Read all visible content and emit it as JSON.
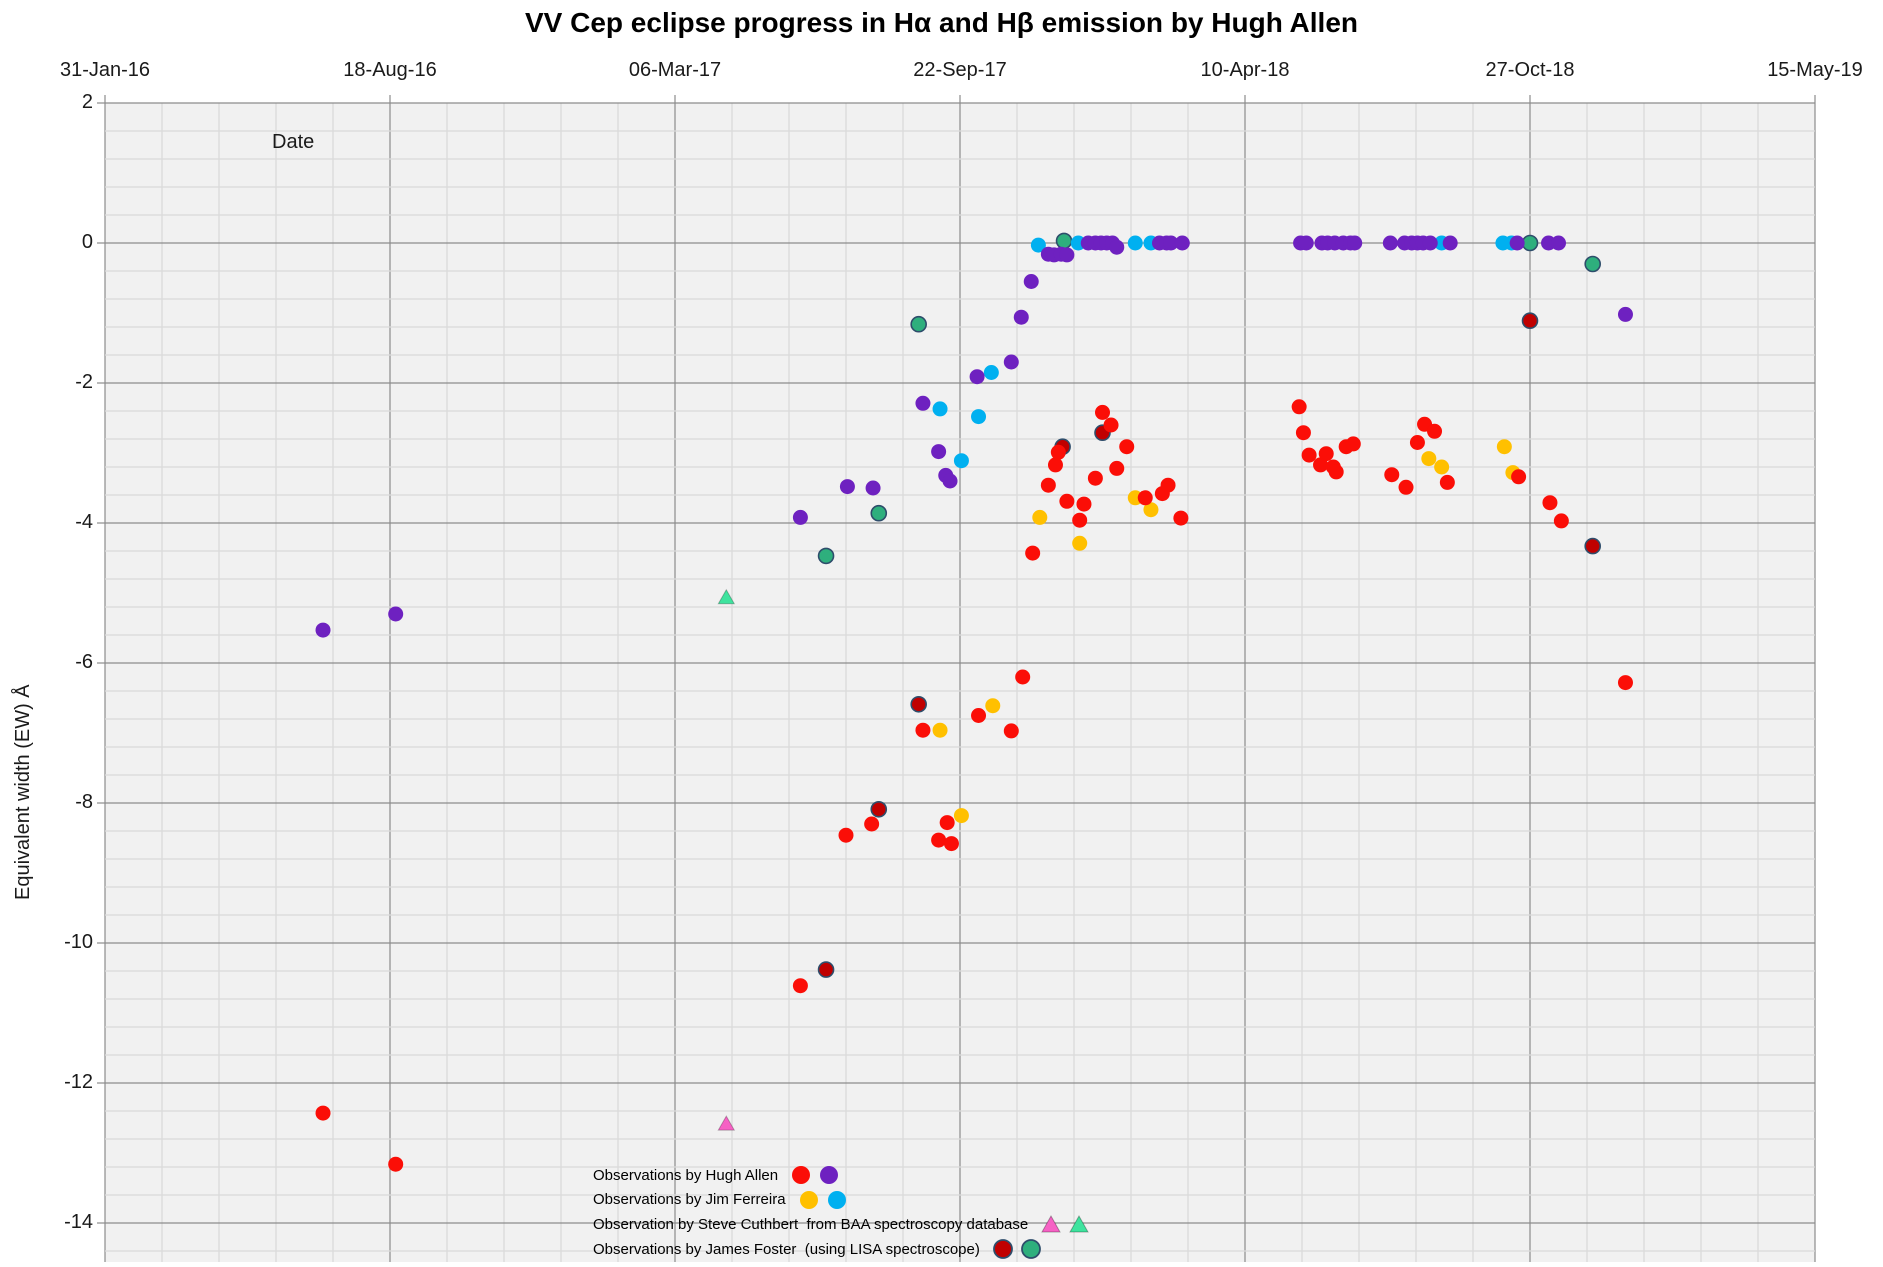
{
  "title": "VV Cep eclipse progress in Hα and Hβ emission by Hugh Allen",
  "axes": {
    "x_label": "Date",
    "y_label": "Equivalent width (EW)  Å",
    "x_tick_labels": [
      "31-Jan-16",
      "18-Aug-16",
      "06-Mar-17",
      "22-Sep-17",
      "10-Apr-18",
      "27-Oct-18",
      "15-May-19"
    ],
    "y_tick_labels": [
      "2",
      "0",
      "-2",
      "-4",
      "-6",
      "-8",
      "-10",
      "-12",
      "-14"
    ],
    "x_unit": "days after 31-Jan-16, 200 days per major gridline",
    "y_unit": "Angstrom, 2 per major gridline, 0.4 per minor gridline"
  },
  "colors": {
    "plot_bg": "#F1F1F1",
    "grid_minor": "#D9D9D9",
    "grid_major": "#8C8C8C",
    "red": "#FB0E07",
    "purple": "#6E21C0",
    "orange": "#FFC000",
    "cyan": "#00B0F0",
    "dark_red": "#C00000",
    "sea_green": "#2EAF7D",
    "pink": "#F661C4",
    "spring_green": "#3EE39E",
    "outline_blue": "#2E4D6B"
  },
  "legend": [
    {
      "label": "Observations by Hugh Allen",
      "markers": [
        {
          "shape": "circle",
          "color": "#FB0E07"
        },
        {
          "shape": "circle",
          "color": "#6E21C0"
        }
      ]
    },
    {
      "label": "Observations by Jim Ferreira",
      "markers": [
        {
          "shape": "circle",
          "color": "#FFC000"
        },
        {
          "shape": "circle",
          "color": "#00B0F0"
        }
      ]
    },
    {
      "label": "Observation by Steve Cuthbert  from BAA spectroscopy database",
      "markers": [
        {
          "shape": "triangle",
          "color": "#F661C4"
        },
        {
          "shape": "triangle",
          "color": "#3EE39E"
        }
      ]
    },
    {
      "label": "Observations by James Foster  (using LISA spectroscope)",
      "markers": [
        {
          "shape": "circle",
          "color": "#C00000",
          "outlined": true
        },
        {
          "shape": "circle",
          "color": "#2EAF7D",
          "outlined": true
        }
      ]
    }
  ],
  "chart_data": {
    "type": "scatter",
    "title": "VV Cep eclipse progress in Hα and Hβ emission by Hugh Allen",
    "xlabel": "Date",
    "ylabel": "Equivalent width (EW)  Å",
    "x_axis": {
      "start": "31-Jan-16",
      "end": "15-May-19",
      "unit": "days after 31-Jan-16"
    },
    "ylim": [
      -14.5,
      2
    ],
    "grid": true,
    "series": [
      {
        "name": "James Foster Hβ (sea-green)",
        "marker": "circle",
        "color": "#2EAF7D",
        "outlined": true,
        "points": [
          [
            506,
            -4.47
          ],
          [
            543,
            -3.86
          ],
          [
            571,
            -1.16
          ],
          [
            673,
            0.03
          ],
          [
            1000,
            0
          ],
          [
            1044,
            -0.3
          ]
        ]
      },
      {
        "name": "James Foster Hα (dark red)",
        "marker": "circle",
        "color": "#C00000",
        "outlined": true,
        "points": [
          [
            506,
            -10.38
          ],
          [
            543,
            -8.09
          ],
          [
            571,
            -6.59
          ],
          [
            672,
            -2.91
          ],
          [
            700,
            -2.71
          ],
          [
            1000,
            -1.11
          ],
          [
            1044,
            -4.33
          ]
        ]
      },
      {
        "name": "Jim Ferreira Hα (orange)",
        "marker": "circle",
        "color": "#FFC000",
        "points": [
          [
            586,
            -6.96
          ],
          [
            601,
            -8.18
          ],
          [
            623,
            -6.61
          ],
          [
            656,
            -3.92
          ],
          [
            684,
            -4.29
          ],
          [
            723,
            -3.64
          ],
          [
            734,
            -3.81
          ],
          [
            929,
            -3.08
          ],
          [
            938,
            -3.2
          ],
          [
            982,
            -2.91
          ],
          [
            988,
            -3.28
          ]
        ]
      },
      {
        "name": "Jim Ferreira Hβ (cyan)",
        "marker": "circle",
        "color": "#00B0F0",
        "points": [
          [
            586,
            -2.37
          ],
          [
            601,
            -3.11
          ],
          [
            613,
            -2.48
          ],
          [
            622,
            -1.85
          ],
          [
            655,
            -0.03
          ],
          [
            683,
            0
          ],
          [
            723,
            0
          ],
          [
            734,
            0
          ],
          [
            938,
            0
          ],
          [
            981,
            0
          ],
          [
            987,
            0
          ]
        ]
      },
      {
        "name": "Steve Cuthbert BAA (pink triangle)",
        "marker": "triangle",
        "color": "#F661C4",
        "points": [
          [
            436,
            -12.58
          ]
        ]
      },
      {
        "name": "Steve Cuthbert BAA (green triangle)",
        "marker": "triangle",
        "color": "#3EE39E",
        "points": [
          [
            436,
            -5.06
          ]
        ]
      },
      {
        "name": "Hugh Allen Hα (red)",
        "marker": "circle",
        "color": "#FB0E07",
        "points": [
          [
            153,
            -12.43
          ],
          [
            204,
            -13.16
          ],
          [
            488,
            -10.61
          ],
          [
            520,
            -8.46
          ],
          [
            538,
            -8.3
          ],
          [
            585,
            -8.53
          ],
          [
            591,
            -8.28
          ],
          [
            594,
            -8.58
          ],
          [
            574,
            -6.96
          ],
          [
            613,
            -6.75
          ],
          [
            636,
            -6.97
          ],
          [
            644,
            -6.2
          ],
          [
            651,
            -4.43
          ],
          [
            662,
            -3.46
          ],
          [
            667,
            -3.17
          ],
          [
            669,
            -2.99
          ],
          [
            675,
            -3.69
          ],
          [
            684,
            -3.96
          ],
          [
            687,
            -3.73
          ],
          [
            695,
            -3.36
          ],
          [
            700,
            -2.42
          ],
          [
            706,
            -2.6
          ],
          [
            710,
            -3.22
          ],
          [
            717,
            -2.91
          ],
          [
            730,
            -3.64
          ],
          [
            742,
            -3.58
          ],
          [
            746,
            -3.46
          ],
          [
            755,
            -3.93
          ],
          [
            838,
            -2.34
          ],
          [
            841,
            -2.71
          ],
          [
            845,
            -3.03
          ],
          [
            853,
            -3.17
          ],
          [
            857,
            -3.01
          ],
          [
            862,
            -3.2
          ],
          [
            864,
            -3.27
          ],
          [
            871,
            -2.91
          ],
          [
            876,
            -2.87
          ],
          [
            903,
            -3.31
          ],
          [
            913,
            -3.49
          ],
          [
            921,
            -2.85
          ],
          [
            926,
            -2.59
          ],
          [
            933,
            -2.69
          ],
          [
            942,
            -3.42
          ],
          [
            992,
            -3.34
          ],
          [
            1014,
            -3.71
          ],
          [
            1022,
            -3.97
          ],
          [
            1067,
            -6.28
          ]
        ]
      },
      {
        "name": "Hugh Allen Hβ (purple)",
        "marker": "circle",
        "color": "#6E21C0",
        "points": [
          [
            153,
            -5.53
          ],
          [
            204,
            -5.3
          ],
          [
            488,
            -3.92
          ],
          [
            521,
            -3.48
          ],
          [
            539,
            -3.5
          ],
          [
            574,
            -2.29
          ],
          [
            585,
            -2.98
          ],
          [
            590,
            -3.32
          ],
          [
            593,
            -3.4
          ],
          [
            612,
            -1.91
          ],
          [
            636,
            -1.7
          ],
          [
            643,
            -1.06
          ],
          [
            650,
            -0.55
          ],
          [
            662,
            -0.16
          ],
          [
            666,
            -0.17
          ],
          [
            671,
            -0.16
          ],
          [
            675,
            -0.17
          ],
          [
            690,
            0
          ],
          [
            695,
            0
          ],
          [
            699,
            0
          ],
          [
            703,
            0
          ],
          [
            707,
            0
          ],
          [
            710,
            -0.06
          ],
          [
            740,
            0
          ],
          [
            745,
            0
          ],
          [
            748,
            0
          ],
          [
            756,
            0
          ],
          [
            839,
            0
          ],
          [
            843,
            0
          ],
          [
            854,
            0
          ],
          [
            858,
            0
          ],
          [
            863,
            0
          ],
          [
            869,
            0
          ],
          [
            874,
            0
          ],
          [
            877,
            0
          ],
          [
            902,
            0
          ],
          [
            912,
            0
          ],
          [
            917,
            0
          ],
          [
            921,
            0
          ],
          [
            925,
            0
          ],
          [
            930,
            0
          ],
          [
            944,
            0
          ],
          [
            991,
            0
          ],
          [
            1013,
            0
          ],
          [
            1020,
            0
          ],
          [
            1067,
            -1.02
          ]
        ]
      }
    ]
  }
}
